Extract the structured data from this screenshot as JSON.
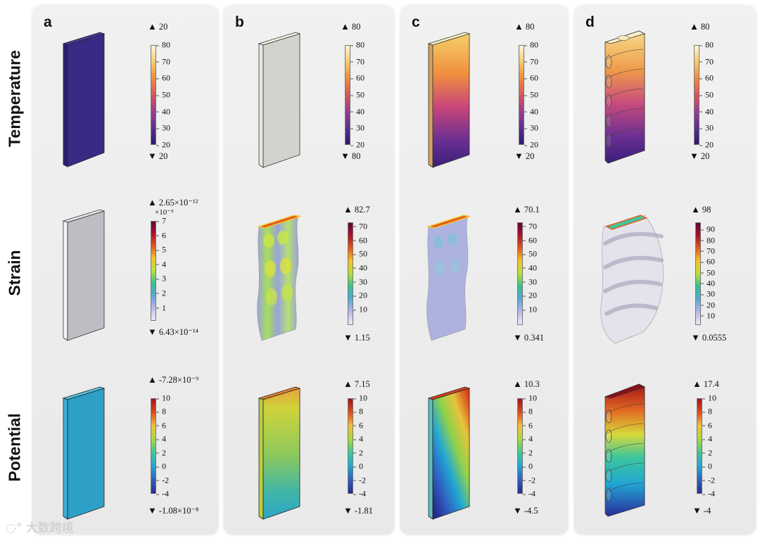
{
  "row_labels": [
    "Temperature",
    "Strain",
    "Potential"
  ],
  "panels": [
    {
      "label": "a",
      "rows": [
        {
          "max": "20",
          "min": "20",
          "multiplier": "",
          "ticks": [
            "80",
            "70",
            "60",
            "50",
            "40",
            "30",
            "20"
          ]
        },
        {
          "max": "2.65×10⁻¹²",
          "min": "6.43×10⁻¹⁴",
          "multiplier": "×10⁻⁵",
          "ticks": [
            "7",
            "6",
            "5",
            "4",
            "3",
            "2",
            "1"
          ]
        },
        {
          "max": "-7.28×10⁻⁹",
          "min": "-1.08×10⁻⁸",
          "multiplier": "",
          "ticks": [
            "10",
            "8",
            "6",
            "4",
            "2",
            "0",
            "-2",
            "-4"
          ]
        }
      ]
    },
    {
      "label": "b",
      "rows": [
        {
          "max": "80",
          "min": "80",
          "multiplier": "",
          "ticks": [
            "80",
            "70",
            "60",
            "50",
            "40",
            "30",
            "20"
          ]
        },
        {
          "max": "82.7",
          "min": "1.15",
          "multiplier": "",
          "ticks": [
            "70",
            "60",
            "50",
            "40",
            "30",
            "20",
            "10"
          ]
        },
        {
          "max": "7.15",
          "min": "-1.81",
          "multiplier": "",
          "ticks": [
            "10",
            "8",
            "6",
            "4",
            "2",
            "0",
            "-2",
            "-4"
          ]
        }
      ]
    },
    {
      "label": "c",
      "rows": [
        {
          "max": "80",
          "min": "20",
          "multiplier": "",
          "ticks": [
            "80",
            "70",
            "60",
            "50",
            "40",
            "30",
            "20"
          ]
        },
        {
          "max": "70.1",
          "min": "0.341",
          "multiplier": "",
          "ticks": [
            "70",
            "60",
            "50",
            "40",
            "30",
            "20",
            "10"
          ]
        },
        {
          "max": "10.3",
          "min": "-4.5",
          "multiplier": "",
          "ticks": [
            "10",
            "8",
            "6",
            "4",
            "2",
            "0",
            "-2",
            "-4"
          ]
        }
      ]
    },
    {
      "label": "d",
      "rows": [
        {
          "max": "80",
          "min": "20",
          "multiplier": "",
          "ticks": [
            "80",
            "70",
            "60",
            "50",
            "40",
            "30",
            "20"
          ]
        },
        {
          "max": "98",
          "min": "0.0555",
          "multiplier": "",
          "ticks": [
            "90",
            "80",
            "70",
            "60",
            "50",
            "40",
            "30",
            "20",
            "10"
          ]
        },
        {
          "max": "17.4",
          "min": "-4",
          "multiplier": "",
          "ticks": [
            "10",
            "8",
            "6",
            "4",
            "2",
            "0",
            "-2",
            "-4"
          ]
        }
      ]
    }
  ],
  "watermark": "大数跨境",
  "colors": {
    "panel_background": "#ededed",
    "temperature_colormap": [
      "#2c1a6e",
      "#5b2f92",
      "#9a3d8f",
      "#d8555c",
      "#f08a3c",
      "#f8c96a",
      "#fdf7d7"
    ],
    "strain_colormap": [
      "#eeeaf6",
      "#b9b6e6",
      "#5aa7d9",
      "#35c08f",
      "#b9df3a",
      "#f3c52a",
      "#e25a1f",
      "#b0102a",
      "#5a0a36"
    ],
    "potential_colormap": [
      "#2a2a8c",
      "#2f5fc0",
      "#22a7d3",
      "#3fc79a",
      "#a8d93a",
      "#f2c03a",
      "#e04a1c",
      "#a3121a"
    ],
    "uniform_temperature_20": "#3a2a86",
    "uniform_temperature_80": "#d3d2cc",
    "uniform_strain_a": "#bdbdc3",
    "uniform_potential_a": "#2e9fc7"
  }
}
